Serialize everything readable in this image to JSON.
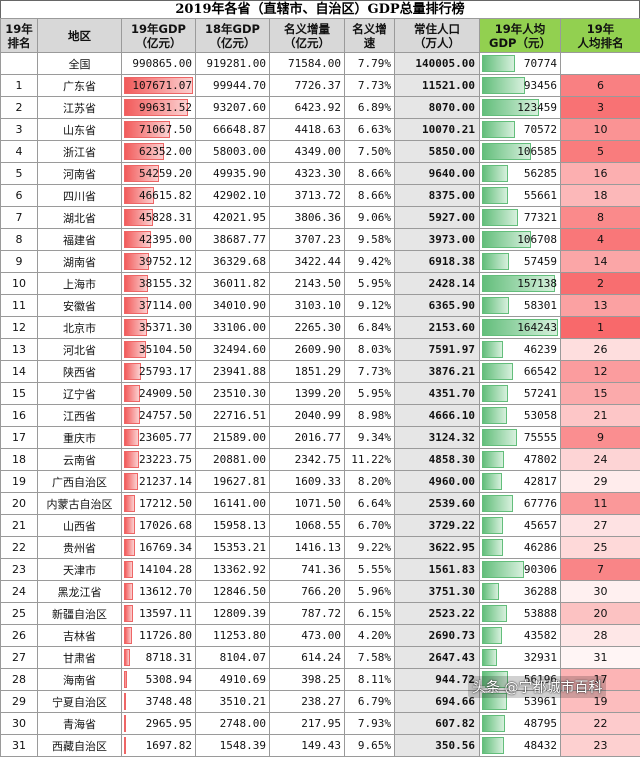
{
  "title": "2019年各省（直辖市、自治区）GDP总量排行榜",
  "headers": {
    "rank": [
      "19年",
      "排名"
    ],
    "region": [
      "地区"
    ],
    "gdp19": [
      "19年GDP",
      "（亿元）"
    ],
    "gdp18": [
      "18年GDP",
      "（亿元）"
    ],
    "increase": [
      "名义增量",
      "（亿元）"
    ],
    "growth": [
      "名义增",
      "速"
    ],
    "population": [
      "常住人口",
      "（万人）"
    ],
    "per_capita": [
      "19年人均",
      "GDP（元）"
    ],
    "pc_rank": [
      "19年",
      "人均排名"
    ]
  },
  "colors": {
    "header_bg": "#d8d8d8",
    "header_green": "#92d050",
    "gdp_bar": "#f25b5b",
    "pc_bar": "#63be7b"
  },
  "gdp_max": 107671.07,
  "pc_max": 164243,
  "national": {
    "rank": "",
    "region": "全国",
    "gdp19": "990865.00",
    "gdp18": "919281.00",
    "increase": "71584.00",
    "growth": "7.79%",
    "population": "140005.00",
    "per_capita": "70774",
    "pc_rank": ""
  },
  "rows": [
    {
      "rank": "1",
      "region": "广东省",
      "gdp19": "107671.07",
      "gdp18": "99944.70",
      "increase": "7726.37",
      "growth": "7.73%",
      "population": "11521.00",
      "per_capita": "93456",
      "pc_rank": "6"
    },
    {
      "rank": "2",
      "region": "江苏省",
      "gdp19": "99631.52",
      "gdp18": "93207.60",
      "increase": "6423.92",
      "growth": "6.89%",
      "population": "8070.00",
      "per_capita": "123459",
      "pc_rank": "3"
    },
    {
      "rank": "3",
      "region": "山东省",
      "gdp19": "71067.50",
      "gdp18": "66648.87",
      "increase": "4418.63",
      "growth": "6.63%",
      "population": "10070.21",
      "per_capita": "70572",
      "pc_rank": "10"
    },
    {
      "rank": "4",
      "region": "浙江省",
      "gdp19": "62352.00",
      "gdp18": "58003.00",
      "increase": "4349.00",
      "growth": "7.50%",
      "population": "5850.00",
      "per_capita": "106585",
      "pc_rank": "5"
    },
    {
      "rank": "5",
      "region": "河南省",
      "gdp19": "54259.20",
      "gdp18": "49935.90",
      "increase": "4323.30",
      "growth": "8.66%",
      "population": "9640.00",
      "per_capita": "56285",
      "pc_rank": "16"
    },
    {
      "rank": "6",
      "region": "四川省",
      "gdp19": "46615.82",
      "gdp18": "42902.10",
      "increase": "3713.72",
      "growth": "8.66%",
      "population": "8375.00",
      "per_capita": "55661",
      "pc_rank": "18"
    },
    {
      "rank": "7",
      "region": "湖北省",
      "gdp19": "45828.31",
      "gdp18": "42021.95",
      "increase": "3806.36",
      "growth": "9.06%",
      "population": "5927.00",
      "per_capita": "77321",
      "pc_rank": "8"
    },
    {
      "rank": "8",
      "region": "福建省",
      "gdp19": "42395.00",
      "gdp18": "38687.77",
      "increase": "3707.23",
      "growth": "9.58%",
      "population": "3973.00",
      "per_capita": "106708",
      "pc_rank": "4"
    },
    {
      "rank": "9",
      "region": "湖南省",
      "gdp19": "39752.12",
      "gdp18": "36329.68",
      "increase": "3422.44",
      "growth": "9.42%",
      "population": "6918.38",
      "per_capita": "57459",
      "pc_rank": "14"
    },
    {
      "rank": "10",
      "region": "上海市",
      "gdp19": "38155.32",
      "gdp18": "36011.82",
      "increase": "2143.50",
      "growth": "5.95%",
      "population": "2428.14",
      "per_capita": "157138",
      "pc_rank": "2"
    },
    {
      "rank": "11",
      "region": "安徽省",
      "gdp19": "37114.00",
      "gdp18": "34010.90",
      "increase": "3103.10",
      "growth": "9.12%",
      "population": "6365.90",
      "per_capita": "58301",
      "pc_rank": "13"
    },
    {
      "rank": "12",
      "region": "北京市",
      "gdp19": "35371.30",
      "gdp18": "33106.00",
      "increase": "2265.30",
      "growth": "6.84%",
      "population": "2153.60",
      "per_capita": "164243",
      "pc_rank": "1"
    },
    {
      "rank": "13",
      "region": "河北省",
      "gdp19": "35104.50",
      "gdp18": "32494.60",
      "increase": "2609.90",
      "growth": "8.03%",
      "population": "7591.97",
      "per_capita": "46239",
      "pc_rank": "26"
    },
    {
      "rank": "14",
      "region": "陕西省",
      "gdp19": "25793.17",
      "gdp18": "23941.88",
      "increase": "1851.29",
      "growth": "7.73%",
      "population": "3876.21",
      "per_capita": "66542",
      "pc_rank": "12"
    },
    {
      "rank": "15",
      "region": "辽宁省",
      "gdp19": "24909.50",
      "gdp18": "23510.30",
      "increase": "1399.20",
      "growth": "5.95%",
      "population": "4351.70",
      "per_capita": "57241",
      "pc_rank": "15"
    },
    {
      "rank": "16",
      "region": "江西省",
      "gdp19": "24757.50",
      "gdp18": "22716.51",
      "increase": "2040.99",
      "growth": "8.98%",
      "population": "4666.10",
      "per_capita": "53058",
      "pc_rank": "21"
    },
    {
      "rank": "17",
      "region": "重庆市",
      "gdp19": "23605.77",
      "gdp18": "21589.00",
      "increase": "2016.77",
      "growth": "9.34%",
      "population": "3124.32",
      "per_capita": "75555",
      "pc_rank": "9"
    },
    {
      "rank": "18",
      "region": "云南省",
      "gdp19": "23223.75",
      "gdp18": "20881.00",
      "increase": "2342.75",
      "growth": "11.22%",
      "population": "4858.30",
      "per_capita": "47802",
      "pc_rank": "24"
    },
    {
      "rank": "19",
      "region": "广西自治区",
      "gdp19": "21237.14",
      "gdp18": "19627.81",
      "increase": "1609.33",
      "growth": "8.20%",
      "population": "4960.00",
      "per_capita": "42817",
      "pc_rank": "29"
    },
    {
      "rank": "20",
      "region": "内蒙古自治区",
      "gdp19": "17212.50",
      "gdp18": "16141.00",
      "increase": "1071.50",
      "growth": "6.64%",
      "population": "2539.60",
      "per_capita": "67776",
      "pc_rank": "11"
    },
    {
      "rank": "21",
      "region": "山西省",
      "gdp19": "17026.68",
      "gdp18": "15958.13",
      "increase": "1068.55",
      "growth": "6.70%",
      "population": "3729.22",
      "per_capita": "45657",
      "pc_rank": "27"
    },
    {
      "rank": "22",
      "region": "贵州省",
      "gdp19": "16769.34",
      "gdp18": "15353.21",
      "increase": "1416.13",
      "growth": "9.22%",
      "population": "3622.95",
      "per_capita": "46286",
      "pc_rank": "25"
    },
    {
      "rank": "23",
      "region": "天津市",
      "gdp19": "14104.28",
      "gdp18": "13362.92",
      "increase": "741.36",
      "growth": "5.55%",
      "population": "1561.83",
      "per_capita": "90306",
      "pc_rank": "7"
    },
    {
      "rank": "24",
      "region": "黑龙江省",
      "gdp19": "13612.70",
      "gdp18": "12846.50",
      "increase": "766.20",
      "growth": "5.96%",
      "population": "3751.30",
      "per_capita": "36288",
      "pc_rank": "30"
    },
    {
      "rank": "25",
      "region": "新疆自治区",
      "gdp19": "13597.11",
      "gdp18": "12809.39",
      "increase": "787.72",
      "growth": "6.15%",
      "population": "2523.22",
      "per_capita": "53888",
      "pc_rank": "20"
    },
    {
      "rank": "26",
      "region": "吉林省",
      "gdp19": "11726.80",
      "gdp18": "11253.80",
      "increase": "473.00",
      "growth": "4.20%",
      "population": "2690.73",
      "per_capita": "43582",
      "pc_rank": "28"
    },
    {
      "rank": "27",
      "region": "甘肃省",
      "gdp19": "8718.31",
      "gdp18": "8104.07",
      "increase": "614.24",
      "growth": "7.58%",
      "population": "2647.43",
      "per_capita": "32931",
      "pc_rank": "31"
    },
    {
      "rank": "28",
      "region": "海南省",
      "gdp19": "5308.94",
      "gdp18": "4910.69",
      "increase": "398.25",
      "growth": "8.11%",
      "population": "944.72",
      "per_capita": "56196",
      "pc_rank": "17"
    },
    {
      "rank": "29",
      "region": "宁夏自治区",
      "gdp19": "3748.48",
      "gdp18": "3510.21",
      "increase": "238.27",
      "growth": "6.79%",
      "population": "694.66",
      "per_capita": "53961",
      "pc_rank": "19"
    },
    {
      "rank": "30",
      "region": "青海省",
      "gdp19": "2965.95",
      "gdp18": "2748.00",
      "increase": "217.95",
      "growth": "7.93%",
      "population": "607.82",
      "per_capita": "48795",
      "pc_rank": "22"
    },
    {
      "rank": "31",
      "region": "西藏自治区",
      "gdp19": "1697.82",
      "gdp18": "1548.39",
      "increase": "149.43",
      "growth": "9.65%",
      "population": "350.56",
      "per_capita": "48432",
      "pc_rank": "23"
    }
  ],
  "watermark": "头条 @宁都城市百科"
}
